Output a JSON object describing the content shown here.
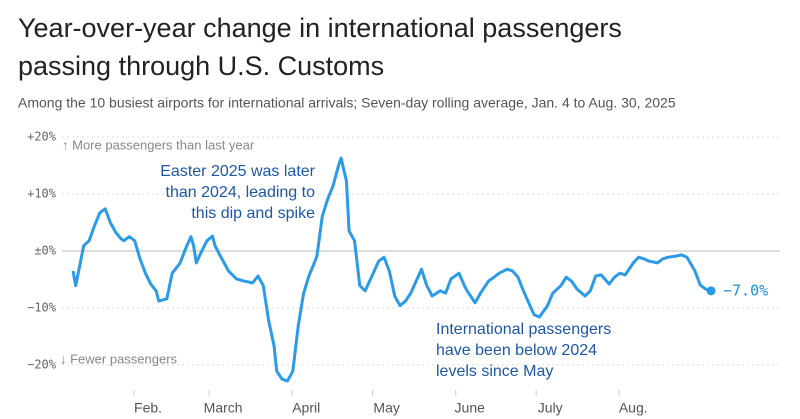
{
  "chart_data": {
    "type": "line",
    "title": [
      "Year-over-year change in international passengers",
      "passing through U.S. Customs"
    ],
    "subtitle": "Among the 10 busiest airports for international arrivals; Seven-day rolling average, Jan. 4 to Aug. 30, 2025",
    "annotations": {
      "up": "↑ More passengers than last year",
      "down": "↓ Fewer passengers",
      "easter": [
        "Easter 2025 was later",
        "than 2024, leading to",
        "this dip and spike"
      ],
      "below": [
        "International passengers",
        "have been below 2024",
        "levels since May"
      ]
    },
    "end_label": "−7.0%",
    "x": [
      4,
      5,
      8,
      10,
      12,
      14,
      16,
      18,
      20,
      22,
      23,
      25,
      27,
      29,
      31,
      33,
      35,
      36,
      39,
      41,
      44,
      46,
      48,
      49,
      50,
      52,
      54,
      56,
      57,
      59,
      62,
      65,
      68,
      71,
      73,
      75,
      77,
      79,
      80,
      82,
      84,
      86,
      88,
      90,
      92,
      94,
      95,
      97,
      99,
      101,
      103,
      104,
      106,
      107,
      109,
      111,
      113,
      116,
      118,
      120,
      122,
      124,
      126,
      128,
      130,
      132,
      134,
      136,
      138,
      141,
      143,
      145,
      148,
      150,
      151,
      154,
      156,
      159,
      161,
      163,
      166,
      168,
      170,
      172,
      174,
      176,
      178,
      181,
      183,
      186,
      188,
      190,
      192,
      195,
      197,
      199,
      201,
      204,
      206,
      208,
      210,
      213,
      215,
      217,
      219,
      222,
      224,
      226,
      229,
      231,
      233,
      236,
      238,
      240,
      242
    ],
    "series": [
      {
        "name": "Year-over-year change",
        "color": "#2b9be8",
        "values": [
          -3.5,
          -6.1,
          0.9,
          1.8,
          4.4,
          6.7,
          7.4,
          4.9,
          3.2,
          2.1,
          1.8,
          2.5,
          1.8,
          -1.4,
          -3.9,
          -5.8,
          -7.0,
          -8.8,
          -8.4,
          -3.9,
          -2.1,
          0.4,
          2.5,
          0.9,
          -2.1,
          0,
          1.8,
          2.6,
          0.9,
          -0.9,
          -3.5,
          -4.9,
          -5.3,
          -5.6,
          -4.4,
          -6.1,
          -12.3,
          -16.7,
          -21.1,
          -22.5,
          -22.8,
          -21.1,
          -13.2,
          -7.5,
          -4.4,
          -2.1,
          -0.9,
          6.1,
          9.1,
          11.4,
          14.9,
          16.3,
          12.3,
          3.5,
          1.8,
          -6.1,
          -7.0,
          -3.9,
          -1.8,
          -1.1,
          -3.5,
          -7.9,
          -9.6,
          -8.8,
          -7.4,
          -5.3,
          -3.2,
          -6.1,
          -7.9,
          -7.0,
          -7.4,
          -4.9,
          -3.9,
          -6.1,
          -7.0,
          -9.1,
          -7.4,
          -5.3,
          -4.6,
          -3.9,
          -3.2,
          -3.5,
          -4.6,
          -7.0,
          -9.1,
          -11.2,
          -11.6,
          -9.6,
          -7.4,
          -6.1,
          -4.6,
          -5.3,
          -6.7,
          -7.9,
          -7.0,
          -4.4,
          -4.2,
          -5.8,
          -4.6,
          -3.9,
          -4.2,
          -2.1,
          -1.1,
          -1.4,
          -1.8,
          -2.1,
          -1.4,
          -1.1,
          -0.9,
          -0.7,
          -1.1,
          -3.5,
          -6.0,
          -6.7,
          -7.0
        ]
      }
    ],
    "xlim": [
      4,
      242
    ],
    "xticks": [
      {
        "value": 32,
        "label": "Feb."
      },
      {
        "value": 60,
        "label": "March"
      },
      {
        "value": 91,
        "label": "April"
      },
      {
        "value": 121,
        "label": "May"
      },
      {
        "value": 152,
        "label": "June"
      },
      {
        "value": 182,
        "label": "July"
      },
      {
        "value": 213,
        "label": "Aug."
      }
    ],
    "ylim": [
      -23,
      20
    ],
    "yticks": [
      {
        "value": 20,
        "label": "+20%"
      },
      {
        "value": 10,
        "label": "+10%"
      },
      {
        "value": 0,
        "label": "±0%"
      },
      {
        "value": -10,
        "label": "−10%"
      },
      {
        "value": -20,
        "label": "−20%"
      }
    ],
    "grid": true
  }
}
